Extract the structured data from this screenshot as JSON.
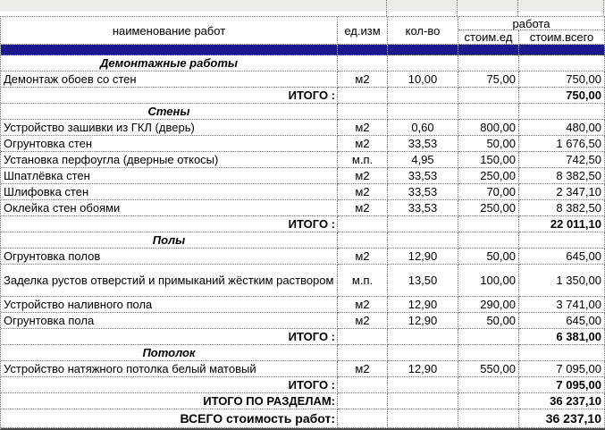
{
  "colors": {
    "separator_bar": "#1a1a8c",
    "top_strip": "#ececea",
    "border": "#7a7a7a"
  },
  "header": {
    "name": "наименование работ",
    "unit": "ед.изм",
    "qty": "кол-во",
    "work_group": "работа",
    "unit_cost": "стоим.ед",
    "total_cost": "стоим.всего"
  },
  "rows": [
    {
      "type": "section",
      "label": "Демонтажные работы"
    },
    {
      "type": "item",
      "name": "Демонтаж обоев со стен",
      "unit": "м2",
      "qty": "10,00",
      "price": "75,00",
      "total": "750,00"
    },
    {
      "type": "subtotal",
      "label": "ИТОГО :",
      "total": "750,00"
    },
    {
      "type": "section",
      "label": "Стены"
    },
    {
      "type": "item",
      "name": "Устройство зашивки из ГКЛ (дверь)",
      "unit": "м2",
      "qty": "0,60",
      "price": "800,00",
      "total": "480,00"
    },
    {
      "type": "item",
      "name": "Огрунтовка стен",
      "unit": "м2",
      "qty": "33,53",
      "price": "50,00",
      "total": "1 676,50"
    },
    {
      "type": "item",
      "name": "Установка перфоугла (дверные откосы)",
      "unit": "м.п.",
      "qty": "4,95",
      "price": "150,00",
      "total": "742,50"
    },
    {
      "type": "item",
      "name": "Шпатлёвка стен",
      "unit": "м2",
      "qty": "33,53",
      "price": "250,00",
      "total": "8 382,50"
    },
    {
      "type": "item",
      "name": "Шлифовка стен",
      "unit": "м2",
      "qty": "33,53",
      "price": "70,00",
      "total": "2 347,10"
    },
    {
      "type": "item",
      "name": "Оклейка стен обоями",
      "unit": "м2",
      "qty": "33,53",
      "price": "250,00",
      "total": "8 382,50"
    },
    {
      "type": "subtotal",
      "label": "ИТОГО :",
      "total": "22 011,10"
    },
    {
      "type": "section",
      "label": "Полы"
    },
    {
      "type": "item",
      "name": "Огрунтовка полов",
      "unit": "м2",
      "qty": "12,90",
      "price": "50,00",
      "total": "645,00"
    },
    {
      "type": "item",
      "tall": true,
      "name": "Заделка рустов отверстий и примыканий жёстким раствором",
      "unit": "м.п.",
      "qty": "13,50",
      "price": "100,00",
      "total": "1 350,00"
    },
    {
      "type": "item",
      "name": "Устройство наливного пола",
      "unit": "м2",
      "qty": "12,90",
      "price": "290,00",
      "total": "3 741,00"
    },
    {
      "type": "item",
      "name": "Огрунтовка пола",
      "unit": "м2",
      "qty": "12,90",
      "price": "50,00",
      "total": "645,00"
    },
    {
      "type": "subtotal",
      "label": "ИТОГО :",
      "total": "6 381,00"
    },
    {
      "type": "section",
      "label": "Потолок"
    },
    {
      "type": "item",
      "name": "Устройство натяжного потолка белый матовый",
      "unit": "м2",
      "qty": "12,90",
      "price": "550,00",
      "total": "7 095,00"
    },
    {
      "type": "subtotal",
      "label": "ИТОГО :",
      "total": "7 095,00"
    },
    {
      "type": "grand",
      "label": "ИТОГО ПО РАЗДЕЛАМ:",
      "total": "36 237,10"
    },
    {
      "type": "vsego",
      "label": "ВСЕГО стоимость работ:",
      "total": "36 237,10"
    }
  ]
}
